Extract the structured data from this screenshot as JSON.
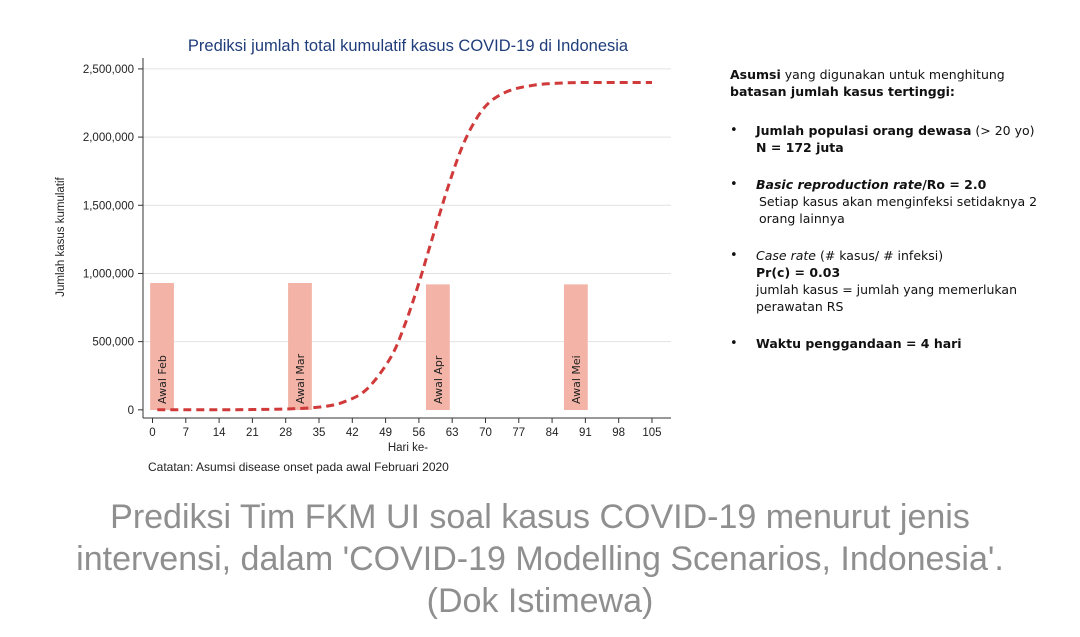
{
  "chart_data": {
    "type": "line",
    "title": "Prediksi jumlah total kumulatif kasus COVID-19 di Indonesia",
    "xlabel": "Hari ke-",
    "ylabel": "Jumlah kasus kumulatif",
    "xlim": [
      -2,
      109
    ],
    "ylim": [
      -60000,
      2580000
    ],
    "xticks": [
      0,
      7,
      14,
      21,
      28,
      35,
      42,
      49,
      56,
      63,
      70,
      77,
      84,
      91,
      98,
      105
    ],
    "yticks": [
      0,
      500000,
      1000000,
      1500000,
      2000000,
      2500000
    ],
    "ytick_labels": [
      "0",
      "500,000",
      "1,000,000",
      "1,500,000",
      "2,000,000",
      "2,500,000"
    ],
    "grid": true,
    "series": [
      {
        "style": "dashed",
        "color": "#d03a3a",
        "x": [
          1,
          7,
          14,
          21,
          28,
          35,
          40,
          45,
          50,
          53,
          56,
          59,
          62,
          65,
          68,
          71,
          75,
          80,
          85,
          90,
          95,
          100,
          105
        ],
        "y": [
          0,
          0,
          500,
          2000,
          6000,
          20000,
          55000,
          150000,
          380000,
          620000,
          930000,
          1280000,
          1620000,
          1920000,
          2130000,
          2260000,
          2340000,
          2380000,
          2395000,
          2400000,
          2400000,
          2400000,
          2400000
        ]
      }
    ],
    "annotations": [
      {
        "label": "Awal Feb",
        "x_start": -0.5,
        "x_end": 4.5,
        "y_top": 930000
      },
      {
        "label": "Awal Mar",
        "x_start": 28.5,
        "x_end": 33.5,
        "y_top": 930000
      },
      {
        "label": "Awal Apr",
        "x_start": 57.5,
        "x_end": 62.5,
        "y_top": 920000
      },
      {
        "label": "Awal Mei",
        "x_start": 86.5,
        "x_end": 91.5,
        "y_top": 920000
      }
    ],
    "note": "Catatan: Asumsi disease onset pada awal Februari 2020"
  },
  "colors": {
    "line": "#d03a3a",
    "band": "#f4b3a7",
    "title": "#1f3d7a",
    "caption": "#8f8f8f"
  },
  "notes": {
    "intro_bold": "Asumsi",
    "intro_rest": " yang digunakan untuk menghitung",
    "intro_line2": "batasan jumlah kasus tertinggi:",
    "item1_bold": "Jumlah populasi orang dewasa",
    "item1_rest": " (> 20 yo)",
    "item1_line2": "N = 172 juta",
    "item2_italic": "Basic reproduction rate",
    "item2_bold": "/Ro = 2.0",
    "item2_line2": "Setiap kasus akan menginfeksi setidaknya 2",
    "item2_line3": "orang lainnya",
    "item3_italic": "Case rate",
    "item3_rest": " (# kasus/ # infeksi)",
    "item3_line2": "Pr(c) = 0.03",
    "item3_line3": "jumlah kasus = jumlah yang memerlukan",
    "item3_line4": "perawatan RS",
    "item4_bold": "Waktu penggandaan = 4 hari"
  },
  "caption": {
    "line1": "Prediksi Tim FKM UI soal kasus COVID-19 menurut jenis",
    "line2": "intervensi, dalam 'COVID-19 Modelling Scenarios, Indonesia'.",
    "line3": "(Dok Istimewa)"
  }
}
